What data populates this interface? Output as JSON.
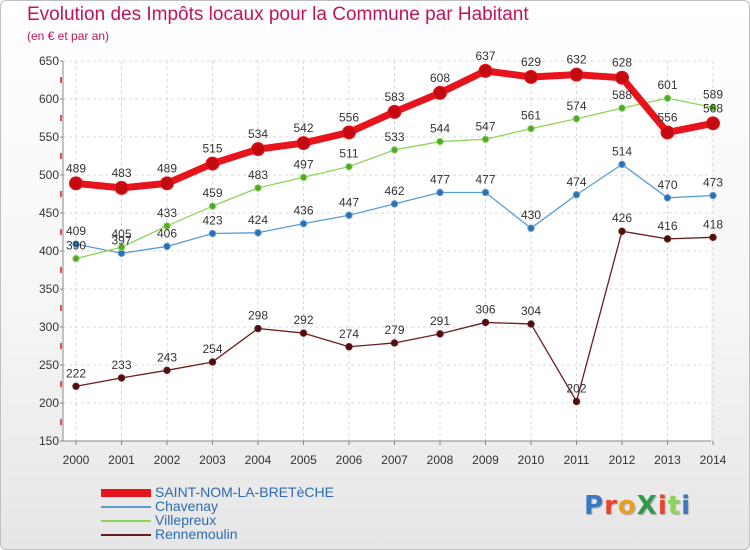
{
  "chart_data": {
    "type": "line",
    "title": "Evolution des Impôts locaux pour la Commune par Habitant",
    "subtitle": "(en € et par an)",
    "xlabel": "",
    "ylabel": "",
    "ylim": [
      150,
      650
    ],
    "yticks": [
      "150",
      "200",
      "250",
      "300",
      "350",
      "400",
      "450",
      "500",
      "550",
      "600",
      "650"
    ],
    "categories": [
      "2000",
      "2001",
      "2002",
      "2003",
      "2004",
      "2005",
      "2006",
      "2007",
      "2008",
      "2009",
      "2010",
      "2011",
      "2012",
      "2013",
      "2014"
    ],
    "grid": true,
    "legend_position": "bottom-left",
    "series": [
      {
        "name": "SAINT-NOM-LA-BRETèCHE",
        "color": "#e8141c",
        "values": [
          489,
          483,
          489,
          515,
          534,
          542,
          556,
          583,
          608,
          637,
          629,
          632,
          628,
          556,
          568
        ]
      },
      {
        "name": "Chavenay",
        "color": "#5b9bd5",
        "values": [
          409,
          397,
          406,
          423,
          424,
          436,
          447,
          462,
          477,
          477,
          430,
          474,
          514,
          470,
          473
        ]
      },
      {
        "name": "Villepreux",
        "color": "#8ed35a",
        "values": [
          390,
          405,
          433,
          459,
          483,
          497,
          511,
          533,
          544,
          547,
          561,
          574,
          588,
          601,
          589
        ]
      },
      {
        "name": "Rennemoulin",
        "color": "#6b1d1d",
        "values": [
          222,
          233,
          243,
          254,
          298,
          292,
          274,
          279,
          291,
          306,
          304,
          202,
          426,
          416,
          418
        ]
      }
    ]
  },
  "logo": {
    "text": "ProXiti",
    "colors": [
      "#3a78c2",
      "#e8432c",
      "#e8a020",
      "#2f9a4a",
      "#e8432c",
      "#8ed35a",
      "#3a78c2"
    ]
  }
}
